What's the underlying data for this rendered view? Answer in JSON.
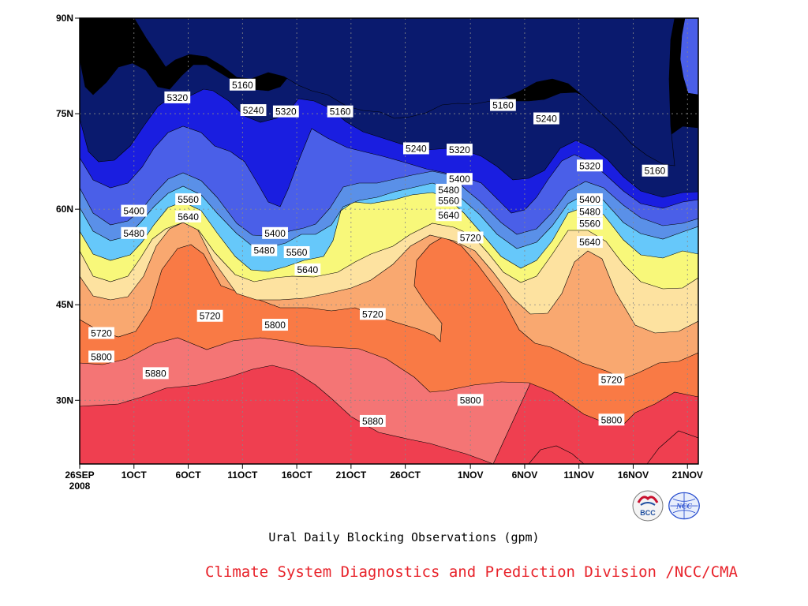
{
  "chart_data": {
    "type": "contour",
    "title": "Ural Daily Blocking Observations (gpm)",
    "credit": "Climate System Diagnostics and Prediction Division /NCC/CMA",
    "x_axis": {
      "range": [
        "2008-09-26",
        "2008-11-22"
      ],
      "ticks": [
        "26SEP",
        "1OCT",
        "6OCT",
        "11OCT",
        "16OCT",
        "21OCT",
        "26OCT",
        "1NOV",
        "6NOV",
        "11NOV",
        "16NOV",
        "21NOV"
      ],
      "year_label": "2008"
    },
    "y_axis": {
      "range": [
        20,
        90
      ],
      "ticks": [
        "30N",
        "45N",
        "60N",
        "75N",
        "90N"
      ]
    },
    "grid": true,
    "contour_levels": [
      5160,
      5240,
      5320,
      5400,
      5480,
      5560,
      5640,
      5720,
      5800,
      5880
    ],
    "fill_colors": [
      "#0a1a6e",
      "#1a1ee0",
      "#4a5fe8",
      "#5a90e8",
      "#66c8fa",
      "#f8f87a",
      "#fde2a0",
      "#f9a870",
      "#f97a45",
      "#f47575",
      "#ef3f50"
    ],
    "contour_labels": [
      {
        "value": "5160",
        "date": "2008-10-11",
        "lat": 79.5
      },
      {
        "value": "5240",
        "date": "2008-10-12",
        "lat": 75.5
      },
      {
        "value": "5320",
        "date": "2008-10-05",
        "lat": 77.5
      },
      {
        "value": "5320",
        "date": "2008-10-15",
        "lat": 75.3
      },
      {
        "value": "5160",
        "date": "2008-10-20",
        "lat": 75.3
      },
      {
        "value": "5240",
        "date": "2008-10-27",
        "lat": 69.5
      },
      {
        "value": "5320",
        "date": "2008-10-31",
        "lat": 69.3
      },
      {
        "value": "5160",
        "date": "2008-11-04",
        "lat": 76.3
      },
      {
        "value": "5240",
        "date": "2008-11-08",
        "lat": 74.2
      },
      {
        "value": "5320",
        "date": "2008-11-12",
        "lat": 66.8
      },
      {
        "value": "5160",
        "date": "2008-11-18",
        "lat": 66.0
      },
      {
        "value": "5400",
        "date": "2008-10-01",
        "lat": 59.7
      },
      {
        "value": "5480",
        "date": "2008-10-01",
        "lat": 56.2
      },
      {
        "value": "5560",
        "date": "2008-10-06",
        "lat": 61.5
      },
      {
        "value": "5640",
        "date": "2008-10-06",
        "lat": 58.8
      },
      {
        "value": "5400",
        "date": "2008-10-14",
        "lat": 56.2
      },
      {
        "value": "5480",
        "date": "2008-10-13",
        "lat": 53.5
      },
      {
        "value": "5560",
        "date": "2008-10-16",
        "lat": 53.2
      },
      {
        "value": "5640",
        "date": "2008-10-17",
        "lat": 50.5
      },
      {
        "value": "5720",
        "date": "2008-10-08",
        "lat": 43.2
      },
      {
        "value": "5800",
        "date": "2008-10-14",
        "lat": 41.8
      },
      {
        "value": "5720",
        "date": "2008-10-23",
        "lat": 43.5
      },
      {
        "value": "5400",
        "date": "2008-10-31",
        "lat": 64.7
      },
      {
        "value": "5480",
        "date": "2008-10-30",
        "lat": 63.0
      },
      {
        "value": "5560",
        "date": "2008-10-30",
        "lat": 61.3
      },
      {
        "value": "5640",
        "date": "2008-10-30",
        "lat": 59.0
      },
      {
        "value": "5720",
        "date": "2008-11-01",
        "lat": 55.5
      },
      {
        "value": "5800",
        "date": "2008-11-01",
        "lat": 30.0
      },
      {
        "value": "5880",
        "date": "2008-10-23",
        "lat": 26.7
      },
      {
        "value": "5400",
        "date": "2008-11-12",
        "lat": 61.5
      },
      {
        "value": "5480",
        "date": "2008-11-12",
        "lat": 59.6
      },
      {
        "value": "5560",
        "date": "2008-11-12",
        "lat": 57.7
      },
      {
        "value": "5640",
        "date": "2008-11-12",
        "lat": 54.8
      },
      {
        "value": "5720",
        "date": "2008-11-14",
        "lat": 33.2
      },
      {
        "value": "5800",
        "date": "2008-11-14",
        "lat": 26.9
      },
      {
        "value": "5720",
        "date": "2008-09-28",
        "lat": 40.5
      },
      {
        "value": "5800",
        "date": "2008-09-28",
        "lat": 36.8
      },
      {
        "value": "5880",
        "date": "2008-10-03",
        "lat": 34.2
      }
    ]
  },
  "logos": {
    "bcc_text": "BCC",
    "ncc_text": "NCC"
  }
}
